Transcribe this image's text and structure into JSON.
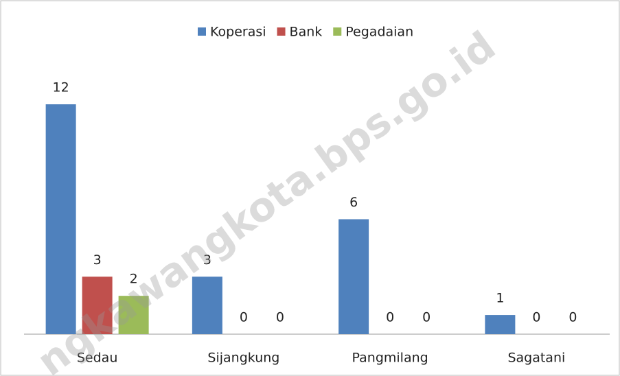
{
  "chart_data": {
    "type": "bar",
    "categories": [
      "Sedau",
      "Sijangkung",
      "Pangmilang",
      "Sagatani"
    ],
    "series": [
      {
        "name": "Koperasi",
        "color": "#4f81bd",
        "values": [
          12,
          3,
          6,
          1
        ]
      },
      {
        "name": "Bank",
        "color": "#c0504d",
        "values": [
          3,
          0,
          0,
          0
        ]
      },
      {
        "name": "Pegadaian",
        "color": "#9bbb59",
        "values": [
          2,
          0,
          0,
          0
        ]
      }
    ],
    "legend": "top",
    "watermark": "ngkawangkota.bps.go.id"
  }
}
